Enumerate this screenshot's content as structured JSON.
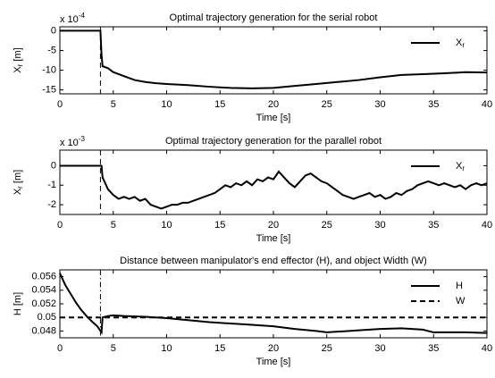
{
  "chart_data": [
    {
      "type": "line",
      "title": "Optimal trajectory generation for the serial robot",
      "scale_label": [
        "x 10",
        "-4"
      ],
      "ylabel": [
        "X",
        "r",
        " [m]"
      ],
      "xlabel": "Time [s]",
      "xlim": [
        0,
        40
      ],
      "xticks": [
        0,
        5,
        10,
        15,
        20,
        25,
        30,
        35,
        40
      ],
      "ylim": [
        -16,
        1
      ],
      "yticks": [
        -15,
        -10,
        -5,
        0
      ],
      "vline": {
        "x": 3.8,
        "style": "dashed"
      },
      "legend": "northeast",
      "series": [
        {
          "name": "X",
          "subscript": "r",
          "color": "#000000",
          "style": "solid",
          "x": [
            0,
            3.8,
            3.9,
            4.0,
            4.5,
            5,
            6,
            7,
            8,
            9,
            10,
            12,
            14,
            16,
            18,
            20,
            22,
            24,
            26,
            28,
            30,
            32,
            34,
            36,
            38,
            40
          ],
          "values": [
            0,
            0,
            -6,
            -9,
            -9.5,
            -10.5,
            -11.5,
            -12.5,
            -13,
            -13.3,
            -13.5,
            -13.8,
            -14.2,
            -14.5,
            -14.6,
            -14.5,
            -14,
            -13.5,
            -13,
            -12.5,
            -11.8,
            -11.2,
            -11,
            -10.8,
            -10.5,
            -10.6
          ]
        }
      ]
    },
    {
      "type": "line",
      "title": "Optimal trajectory generation for the parallel robot",
      "scale_label": [
        "x 10",
        "-3"
      ],
      "ylabel": [
        "X",
        "r",
        " [m]"
      ],
      "xlabel": "Time [s]",
      "xlim": [
        0,
        40
      ],
      "xticks": [
        0,
        5,
        10,
        15,
        20,
        25,
        30,
        35,
        40
      ],
      "ylim": [
        -2.5,
        0.8
      ],
      "yticks": [
        -2,
        -1,
        0
      ],
      "vline": {
        "x": 3.8,
        "style": "dashed"
      },
      "legend": "northeast",
      "series": [
        {
          "name": "X",
          "subscript": "r",
          "color": "#000000",
          "style": "solid",
          "x": [
            0,
            3.9,
            4.0,
            4.5,
            5,
            5.5,
            6,
            6.5,
            7,
            7.5,
            8,
            8.5,
            9,
            9.5,
            10,
            10.5,
            11,
            11.5,
            12,
            12.5,
            13,
            13.5,
            14,
            14.5,
            15,
            15.5,
            16,
            16.5,
            17,
            17.5,
            18,
            18.5,
            19,
            19.5,
            20,
            20.5,
            21,
            21.5,
            22,
            22.5,
            23,
            23.5,
            24,
            24.5,
            25,
            25.5,
            26,
            26.5,
            27,
            27.5,
            28,
            28.5,
            29,
            29.5,
            30,
            30.5,
            31,
            31.5,
            32,
            32.5,
            33,
            33.5,
            34,
            34.5,
            35,
            35.5,
            36,
            36.5,
            37,
            37.5,
            38,
            38.5,
            39,
            39.5,
            40
          ],
          "values": [
            0,
            0,
            -0.6,
            -1.2,
            -1.5,
            -1.7,
            -1.6,
            -1.7,
            -1.6,
            -1.8,
            -1.7,
            -2.0,
            -2.1,
            -2.2,
            -2.1,
            -2.0,
            -2.0,
            -1.9,
            -1.9,
            -1.8,
            -1.7,
            -1.6,
            -1.5,
            -1.4,
            -1.2,
            -1.0,
            -1.1,
            -0.9,
            -1.0,
            -0.8,
            -1.0,
            -0.7,
            -0.8,
            -0.6,
            -0.7,
            -0.3,
            -0.6,
            -0.9,
            -1.1,
            -0.8,
            -0.5,
            -0.4,
            -0.6,
            -0.8,
            -0.9,
            -1.1,
            -1.3,
            -1.5,
            -1.6,
            -1.7,
            -1.6,
            -1.5,
            -1.4,
            -1.6,
            -1.5,
            -1.7,
            -1.6,
            -1.4,
            -1.5,
            -1.3,
            -1.2,
            -1.0,
            -0.9,
            -0.8,
            -0.9,
            -1.0,
            -0.9,
            -1.0,
            -1.1,
            -1.0,
            -1.2,
            -1.0,
            -0.9,
            -1.0,
            -0.9
          ]
        }
      ]
    },
    {
      "type": "line",
      "title": "Distance between manipulator's end effector (H), and object Width (W)",
      "ylabel": [
        "H [m]"
      ],
      "xlabel": "Time [s]",
      "xlim": [
        0,
        40
      ],
      "xticks": [
        0,
        5,
        10,
        15,
        20,
        25,
        30,
        35,
        40
      ],
      "ylim": [
        0.047,
        0.057
      ],
      "yticks": [
        0.048,
        0.05,
        0.052,
        0.054,
        0.056
      ],
      "vline": {
        "x": 3.8,
        "style": "dashdot"
      },
      "legend": "northeast",
      "series": [
        {
          "name": "H",
          "color": "#000000",
          "style": "solid",
          "x": [
            0,
            0.5,
            1,
            1.5,
            2,
            2.5,
            3,
            3.5,
            3.9,
            4,
            4.5,
            5,
            6,
            8,
            10,
            12,
            14,
            16,
            18,
            20,
            22,
            24,
            25,
            26,
            28,
            30,
            32,
            34,
            35,
            36,
            38,
            40
          ],
          "values": [
            0.0565,
            0.0548,
            0.0535,
            0.0522,
            0.0511,
            0.0502,
            0.0494,
            0.0487,
            0.0478,
            0.05,
            0.0502,
            0.0503,
            0.0502,
            0.0501,
            0.0499,
            0.0496,
            0.0493,
            0.0491,
            0.0489,
            0.0487,
            0.0483,
            0.048,
            0.0478,
            0.0479,
            0.0481,
            0.0483,
            0.0484,
            0.0482,
            0.0478,
            0.0478,
            0.0478,
            0.0477
          ]
        },
        {
          "name": "W",
          "color": "#000000",
          "style": "dashed",
          "x": [
            0,
            40
          ],
          "values": [
            0.05,
            0.05
          ]
        }
      ]
    }
  ]
}
